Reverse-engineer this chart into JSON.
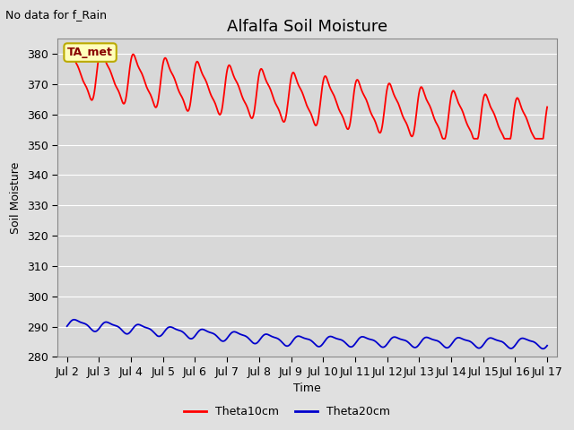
{
  "title": "Alfalfa Soil Moisture",
  "subtitle": "No data for f_Rain",
  "ylabel": "Soil Moisture",
  "xlabel": "Time",
  "background_color": "#e0e0e0",
  "plot_bg_color": "#d8d8d8",
  "ylim": [
    280,
    385
  ],
  "yticks": [
    280,
    290,
    300,
    310,
    320,
    330,
    340,
    350,
    360,
    370,
    380
  ],
  "xtick_labels": [
    "Jul 2",
    "Jul 3",
    "Jul 4",
    "Jul 5",
    "Jul 6",
    "Jul 7",
    "Jul 8",
    "Jul 9",
    "Jul 10",
    "Jul 11",
    "Jul 12",
    "Jul 13",
    "Jul 14",
    "Jul 15",
    "Jul 16",
    "Jul 17"
  ],
  "legend_label1": "Theta10cm",
  "legend_label2": "Theta20cm",
  "line1_color": "#ff0000",
  "line2_color": "#0000cc",
  "annotation_text": "TA_met",
  "annotation_bg": "#ffffbb",
  "annotation_border": "#bbaa00",
  "title_fontsize": 13,
  "axis_fontsize": 9,
  "tick_fontsize": 9,
  "subtitle_fontsize": 9
}
